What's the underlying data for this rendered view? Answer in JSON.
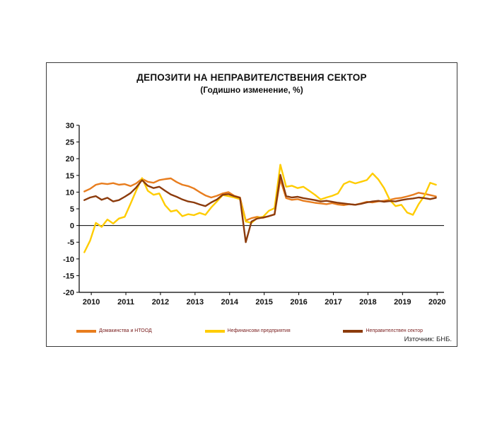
{
  "page": {
    "source_note": "Източник: БНБ."
  },
  "chart_data": {
    "type": "line",
    "title": "ДЕПОЗИТИ НА НЕПРАВИТЕЛСТВЕНИЯ СЕКТОР",
    "subtitle": "(Годишно изменение, %)",
    "ylabel": "",
    "xlabel": "",
    "ylim": [
      -20,
      30
    ],
    "x_range": [
      2009.65,
      2020.2
    ],
    "y_ticks": [
      30,
      25,
      20,
      15,
      10,
      5,
      0,
      -5,
      -10,
      -15,
      -20
    ],
    "x_tick_labels": [
      "2010",
      "2011",
      "2012",
      "2013",
      "2014",
      "2015",
      "2016",
      "2017",
      "2018",
      "2019",
      "2020"
    ],
    "grid": "zero-line-only",
    "legend_position": "bottom",
    "axis_color": "#000000",
    "x_start": 2009.8,
    "x_step_years": 0.16667,
    "series": [
      {
        "name": "Домакинства и НТООД",
        "color": "#E87D1E",
        "values": [
          10.2,
          11.0,
          12.2,
          12.6,
          12.4,
          12.7,
          12.2,
          12.4,
          11.8,
          12.6,
          14.0,
          13.1,
          12.8,
          13.6,
          13.9,
          14.1,
          13.0,
          12.2,
          11.8,
          11.1,
          10.0,
          9.0,
          8.4,
          8.9,
          9.6,
          10.0,
          8.9,
          8.4,
          1.5,
          2.2,
          2.6,
          2.3,
          2.8,
          3.4,
          13.8,
          8.2,
          7.7,
          7.9,
          7.4,
          7.1,
          6.8,
          6.6,
          6.4,
          6.7,
          6.3,
          6.1,
          6.4,
          6.2,
          6.6,
          7.1,
          6.9,
          7.2,
          7.4,
          7.7,
          8.1,
          8.3,
          8.7,
          9.2,
          9.8,
          9.5,
          9.1,
          8.7
        ]
      },
      {
        "name": "Нефинансови предприятия",
        "color": "#FFCC00",
        "values": [
          -8.0,
          -4.5,
          0.8,
          -0.4,
          1.8,
          0.6,
          2.1,
          2.6,
          6.5,
          10.5,
          14.2,
          10.4,
          9.2,
          9.6,
          6.1,
          4.2,
          4.6,
          2.8,
          3.4,
          3.1,
          3.8,
          3.2,
          5.4,
          7.2,
          9.1,
          8.8,
          8.4,
          7.9,
          1.2,
          0.8,
          2.3,
          2.6,
          4.4,
          5.2,
          18.2,
          11.6,
          11.9,
          11.2,
          11.6,
          10.4,
          9.2,
          7.8,
          8.4,
          8.9,
          9.6,
          12.4,
          13.2,
          12.6,
          13.1,
          13.6,
          15.6,
          13.8,
          11.2,
          7.6,
          5.8,
          6.2,
          3.9,
          3.2,
          6.4,
          8.9,
          12.8,
          12.2
        ]
      },
      {
        "name": "Неправителствен сектор",
        "color": "#8C3B0C",
        "values": [
          7.6,
          8.4,
          8.8,
          7.7,
          8.3,
          7.2,
          7.6,
          8.6,
          9.7,
          11.4,
          13.6,
          11.9,
          11.2,
          11.6,
          10.4,
          9.3,
          8.6,
          7.8,
          7.2,
          6.9,
          6.3,
          5.8,
          6.9,
          7.8,
          9.2,
          9.4,
          8.8,
          8.3,
          -5.0,
          1.2,
          2.1,
          2.4,
          2.8,
          3.3,
          15.2,
          8.8,
          8.4,
          8.6,
          8.2,
          7.9,
          7.6,
          7.2,
          7.4,
          7.1,
          6.8,
          6.6,
          6.4,
          6.2,
          6.5,
          6.9,
          7.2,
          7.4,
          7.1,
          7.3,
          7.2,
          7.6,
          7.9,
          8.1,
          8.4,
          8.2,
          7.9,
          8.3
        ]
      }
    ]
  }
}
